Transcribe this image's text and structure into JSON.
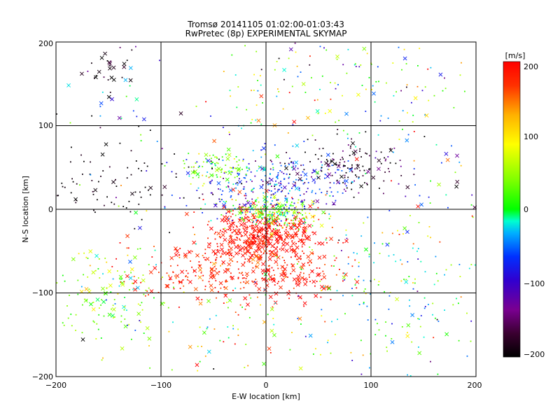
{
  "chart_data": {
    "type": "scatter",
    "title": "Tromsø 20141105 01:02:00-01:03:43",
    "subtitle": "RwPretec (8p) EXPERIMENTAL SKYMAP",
    "xlabel": "E-W location [km]",
    "ylabel": "N-S location [km]",
    "xlim": [
      -200,
      200
    ],
    "ylim": [
      -200,
      200
    ],
    "x_ticks": [
      "−200",
      "−100",
      "0",
      "100",
      "200"
    ],
    "y_ticks": [
      "−200",
      "−100",
      "0",
      "100",
      "200"
    ],
    "grid": true,
    "markers": "dots and crosses",
    "colorbar": {
      "label": "[m/s]",
      "range": [
        -200,
        200
      ],
      "ticks": [
        "200",
        "100",
        "0",
        "−100",
        "−200"
      ],
      "colormap": "rainbow: black (−200) → purple → blue → cyan → green (0) → yellow → orange → red (200)"
    },
    "clusters": [
      {
        "center": [
          0,
          -30
        ],
        "spread": [
          28,
          16
        ],
        "n": 420,
        "value": 195,
        "value_sd": 10,
        "cross_frac": 0.45
      },
      {
        "center": [
          -25,
          -70
        ],
        "spread": [
          45,
          22
        ],
        "n": 240,
        "value": 185,
        "value_sd": 20,
        "cross_frac": 0.25
      },
      {
        "center": [
          20,
          -85
        ],
        "spread": [
          25,
          12
        ],
        "n": 70,
        "value": 195,
        "value_sd": 8,
        "cross_frac": 0.6
      },
      {
        "center": [
          -90,
          -78
        ],
        "spread": [
          30,
          12
        ],
        "n": 60,
        "value": 185,
        "value_sd": 20,
        "cross_frac": 0.3
      },
      {
        "center": [
          5,
          -3
        ],
        "spread": [
          22,
          9
        ],
        "n": 230,
        "value": 40,
        "value_sd": 45,
        "cross_frac": 0.15
      },
      {
        "center": [
          0,
          28
        ],
        "spread": [
          38,
          18
        ],
        "n": 320,
        "value": -90,
        "value_sd": 40,
        "cross_frac": 0.1
      },
      {
        "center": [
          -45,
          50
        ],
        "spread": [
          18,
          9
        ],
        "n": 90,
        "value": 40,
        "value_sd": 35,
        "cross_frac": 0.2
      },
      {
        "center": [
          80,
          50
        ],
        "spread": [
          30,
          18
        ],
        "n": 130,
        "value": -180,
        "value_sd": 25,
        "cross_frac": 0.15
      },
      {
        "center": [
          -140,
          30
        ],
        "spread": [
          50,
          20
        ],
        "n": 90,
        "value": -195,
        "value_sd": 10,
        "cross_frac": 0.05
      },
      {
        "center": [
          -150,
          165
        ],
        "spread": [
          12,
          12
        ],
        "n": 25,
        "value": -190,
        "value_sd": 15,
        "cross_frac": 0.6
      },
      {
        "center": [
          -140,
          130
        ],
        "spread": [
          40,
          40
        ],
        "n": 35,
        "value": -80,
        "value_sd": 100,
        "cross_frac": 0.3
      },
      {
        "center": [
          -150,
          -100
        ],
        "spread": [
          30,
          30
        ],
        "n": 140,
        "value": 40,
        "value_sd": 40,
        "cross_frac": 0.2
      },
      {
        "center": [
          110,
          -110
        ],
        "spread": [
          60,
          45
        ],
        "n": 190,
        "value": 10,
        "value_sd": 70,
        "cross_frac": 0.1
      },
      {
        "center": [
          100,
          150
        ],
        "spread": [
          50,
          35
        ],
        "n": 110,
        "value": 10,
        "value_sd": 80,
        "cross_frac": 0.1
      },
      {
        "center": [
          0,
          120
        ],
        "spread": [
          30,
          40
        ],
        "n": 50,
        "value": 60,
        "value_sd": 120,
        "cross_frac": 0.2
      },
      {
        "center": [
          -40,
          -150
        ],
        "spread": [
          50,
          30
        ],
        "n": 60,
        "value": 80,
        "value_sd": 80,
        "cross_frac": 0.2
      },
      {
        "center": [
          160,
          30
        ],
        "spread": [
          25,
          60
        ],
        "n": 40,
        "value": -30,
        "value_sd": 100,
        "cross_frac": 0.2
      },
      {
        "center": [
          0,
          0
        ],
        "spread": [
          120,
          120
        ],
        "n": 120,
        "value": 0,
        "value_sd": 120,
        "cross_frac": 0.2
      }
    ]
  }
}
